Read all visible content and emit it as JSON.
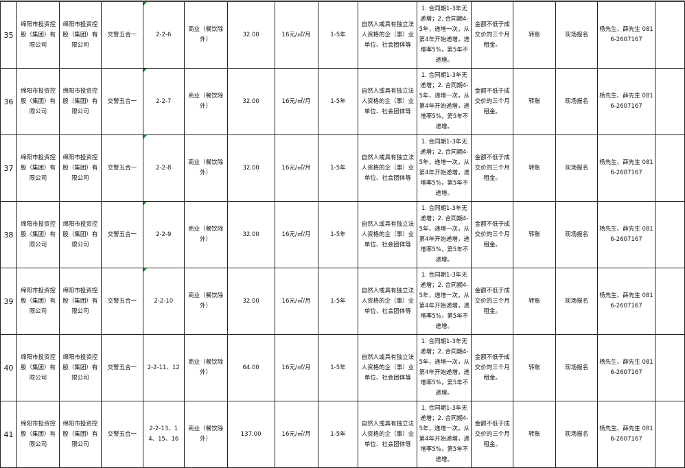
{
  "colors": {
    "grid": "#222222",
    "comment_marker": "#1a8a2a"
  },
  "common": {
    "owner": "绵阳市投资控股（集团）有限公司",
    "manager": "绵阳市投资控股（集团）有限公司",
    "location": "交警五合一",
    "usage": "商业（餐饮除外）",
    "price": "16元/㎡/月",
    "term": "1-5年",
    "qualification": "自然人或具有独立法人资格的企（事）业单位、社会团体等",
    "increase": "1. 合同期1-3年无递增；2. 合同期4-5年，递增一次，从第4年开始递增，递增率5%，第5年不递增。",
    "deposit": "金额不低于成交价的三个月租金。",
    "payment": "转账",
    "signup": "现场报名",
    "contact": "杨先生、薛先生 0816-2607167",
    "extra": ""
  },
  "rows": [
    {
      "no": "35",
      "unit": "2-2-6",
      "area": "32.00"
    },
    {
      "no": "36",
      "unit": "2-2-7",
      "area": "32.00"
    },
    {
      "no": "37",
      "unit": "2-2-8",
      "area": "32.00"
    },
    {
      "no": "38",
      "unit": "2-2-9",
      "area": "32.00"
    },
    {
      "no": "39",
      "unit": "2-2-10",
      "area": "32.00"
    },
    {
      "no": "40",
      "unit": "2-2-11、12",
      "area": "64.00"
    },
    {
      "no": "41",
      "unit": "2-2-13、14、15、16",
      "area": "137.00"
    }
  ]
}
